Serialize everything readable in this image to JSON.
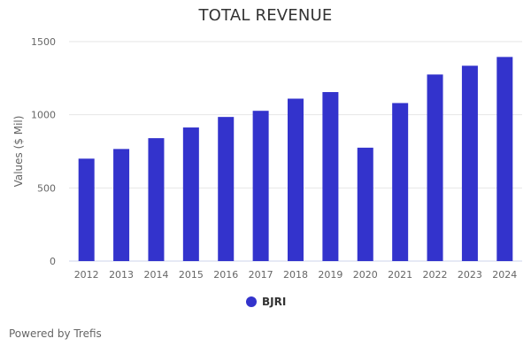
{
  "chart_data": {
    "type": "bar",
    "title": "TOTAL REVENUE",
    "xlabel": "",
    "ylabel": "Values ($ Mil)",
    "ylim": [
      0,
      1500
    ],
    "yticks": [
      0,
      500,
      1000,
      1500
    ],
    "grid": true,
    "legend_position": "bottom-center",
    "categories": [
      "2012",
      "2013",
      "2014",
      "2015",
      "2016",
      "2017",
      "2018",
      "2019",
      "2020",
      "2021",
      "2022",
      "2023",
      "2024"
    ],
    "series": [
      {
        "name": "BJRI",
        "color": "#3333cc",
        "values": [
          700,
          766,
          840,
          913,
          985,
          1027,
          1110,
          1155,
          775,
          1080,
          1275,
          1335,
          1395
        ]
      }
    ]
  },
  "credits": "Powered by Trefis"
}
